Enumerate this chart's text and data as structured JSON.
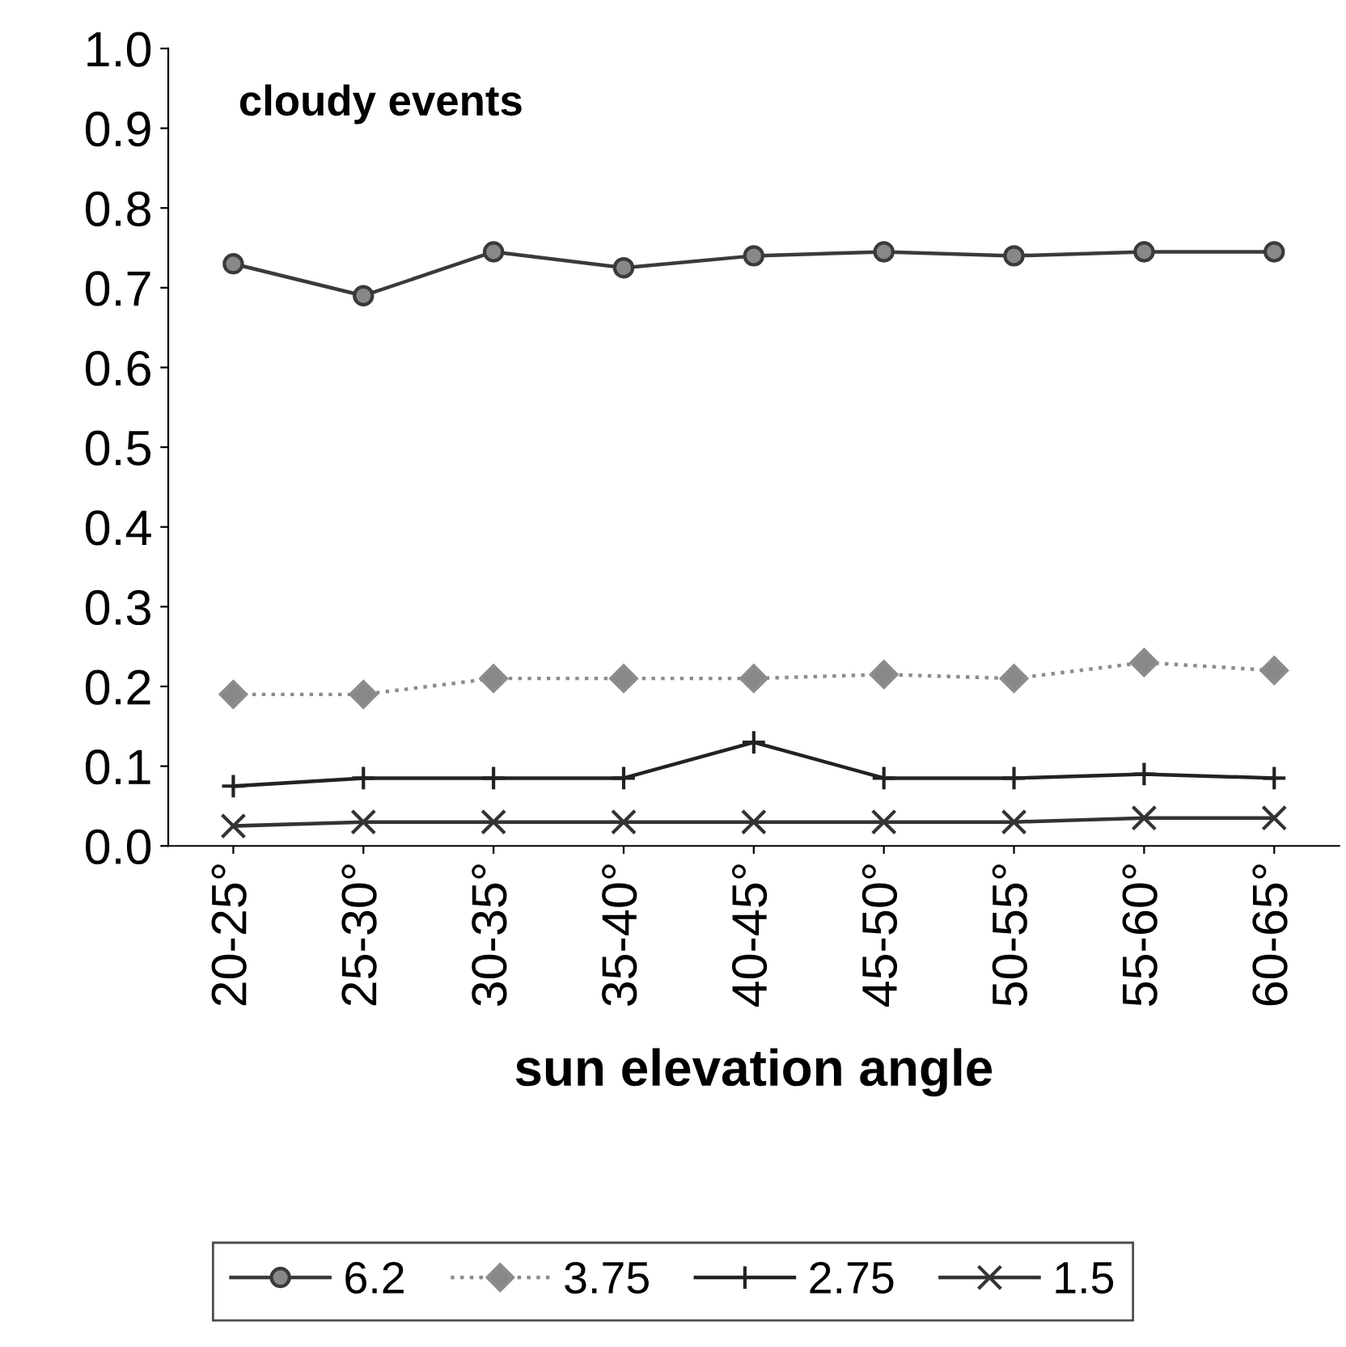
{
  "chart_data": {
    "type": "line",
    "title": "cloudy events",
    "xlabel": "sun elevation angle",
    "categories": [
      "20-25°",
      "25-30°",
      "30-35°",
      "35-40°",
      "40-45°",
      "45-50°",
      "50-55°",
      "55-60°",
      "60-65°"
    ],
    "series": [
      {
        "name": "6.2",
        "color": "#3a3a3a",
        "marker": "circle",
        "line_style": "solid",
        "values": [
          0.73,
          0.69,
          0.745,
          0.725,
          0.74,
          0.745,
          0.74,
          0.745,
          0.745
        ]
      },
      {
        "name": "3.75",
        "color": "#8c8c8c",
        "marker": "diamond",
        "line_style": "dotted",
        "values": [
          0.19,
          0.19,
          0.21,
          0.21,
          0.21,
          0.215,
          0.21,
          0.23,
          0.22
        ]
      },
      {
        "name": "2.75",
        "color": "#222222",
        "marker": "plus",
        "line_style": "solid",
        "values": [
          0.075,
          0.085,
          0.085,
          0.085,
          0.13,
          0.085,
          0.085,
          0.09,
          0.085
        ]
      },
      {
        "name": "1.5",
        "color": "#333333",
        "marker": "cross",
        "line_style": "solid",
        "values": [
          0.025,
          0.03,
          0.03,
          0.03,
          0.03,
          0.03,
          0.03,
          0.035,
          0.035
        ]
      }
    ],
    "ylim": [
      0,
      1
    ],
    "yticks": [
      {
        "value": 0,
        "label": "0.0"
      },
      0.1,
      0.2,
      0.3,
      0.4,
      0.5,
      0.6,
      0.7,
      0.8,
      0.9,
      {
        "value": 1,
        "label": "1.0"
      }
    ],
    "grid": false,
    "legend": "bottom"
  }
}
